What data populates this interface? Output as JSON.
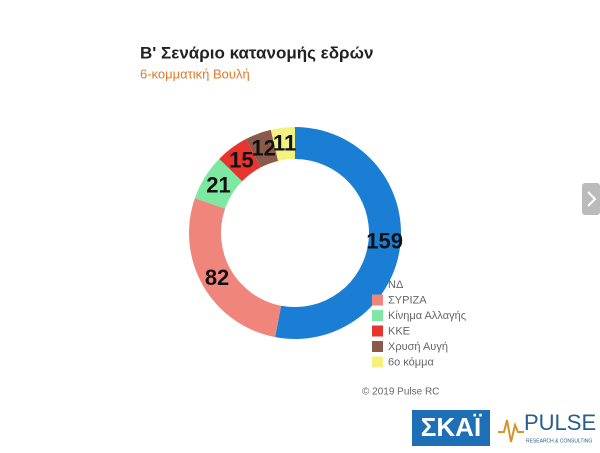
{
  "chart_data": {
    "type": "donut",
    "title": "Β' Σενάριο κατανομής εδρών",
    "subtitle": "6-κομματική Βουλή",
    "categories": [
      "ΝΔ",
      "ΣΥΡΙΖΑ",
      "Κίνημα Αλλαγής",
      "ΚΚΕ",
      "Χρυσή Αυγή",
      "6ο κόμμα"
    ],
    "values": [
      159,
      82,
      21,
      15,
      12,
      11
    ],
    "colors": [
      "#1a7fd4",
      "#f0857c",
      "#7ee8a2",
      "#e8342e",
      "#8a5a4c",
      "#f4f27e"
    ],
    "source": "© 2019 Pulse RC",
    "legend": "bottom-right"
  },
  "logos": {
    "skai": "ΣΚΑΪ",
    "pulse": "PULSE",
    "pulse_tagline": "RESEARCH & CONSULTING"
  }
}
